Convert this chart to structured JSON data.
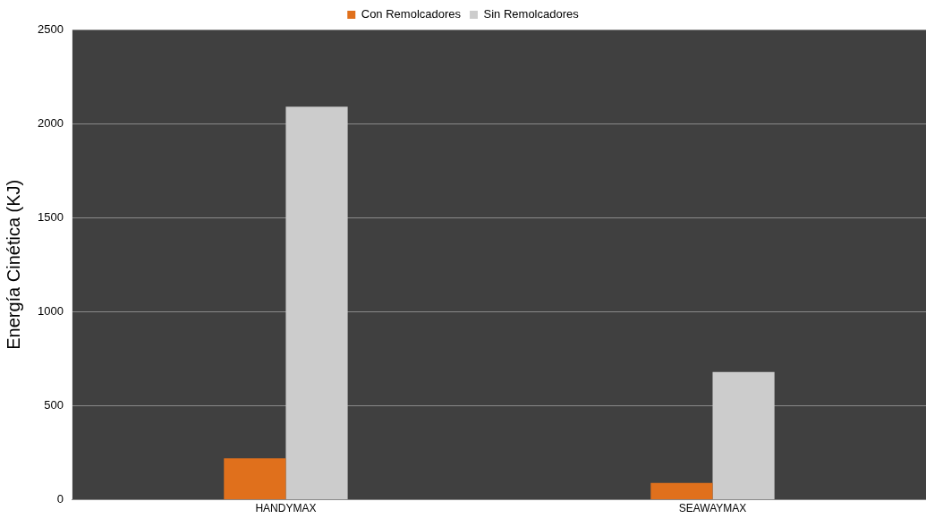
{
  "chart_data": {
    "type": "bar",
    "ylabel": "Energía Cinética (KJ)",
    "categories": [
      "HANDYMAX",
      "SEAWAYMAX"
    ],
    "series": [
      {
        "name": "Con Remolcadores",
        "color": "#e0701c",
        "values": [
          220,
          90
        ]
      },
      {
        "name": "Sin Remolcadores",
        "color": "#cccccc",
        "values": [
          2090,
          680
        ]
      }
    ],
    "ylim": [
      0,
      2500
    ],
    "yticks": [
      0,
      500,
      1000,
      1500,
      2000,
      2500
    ],
    "grid": "y",
    "legend": "top"
  }
}
